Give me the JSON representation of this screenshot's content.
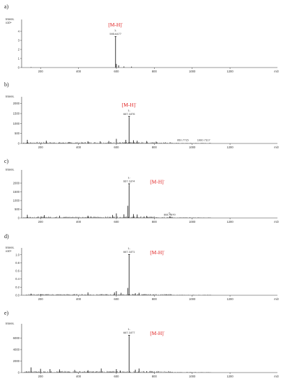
{
  "chart_data": [
    {
      "type": "bar",
      "panel": "a)",
      "ylabel": "Intens.",
      "ylabel2": "x10⁴",
      "xlabel": "m/z",
      "ylim": [
        0,
        5
      ],
      "yticks": [
        "0",
        "1",
        "2",
        "3",
        "4"
      ],
      "xlim": [
        100,
        1450
      ],
      "xticks": [
        200,
        400,
        600,
        800,
        1000,
        1200
      ],
      "ion_label": "[M-H]",
      "ion_sup": "-",
      "peak_label_1": "1-",
      "peak_label_2": "595.6477",
      "peaks": [
        [
          595.6477,
          3.3
        ],
        [
          600,
          0.4
        ],
        [
          612,
          0.25
        ],
        [
          640,
          0.12
        ],
        [
          680,
          0.1
        ],
        [
          150,
          0.05
        ]
      ],
      "other_labels": []
    },
    {
      "type": "bar",
      "panel": "b)",
      "ylabel": "Intens.",
      "ylabel2": "",
      "xlabel": "m/z",
      "ylim": [
        0,
        2200
      ],
      "yticks": [
        "0",
        "500",
        "1000",
        "1500",
        "2000"
      ],
      "xlim": [
        100,
        1450
      ],
      "xticks": [
        200,
        400,
        600,
        800,
        1000,
        1200
      ],
      "ion_label": "[M-H]",
      "ion_sup": "-",
      "peak_label_1": "1-",
      "peak_label_2": "667.1876",
      "peaks": [
        [
          667.1876,
          1300
        ],
        [
          600,
          230
        ],
        [
          650,
          180
        ],
        [
          690,
          160
        ],
        [
          710,
          140
        ],
        [
          560,
          120
        ],
        [
          515,
          110
        ],
        [
          130,
          180
        ],
        [
          230,
          140
        ],
        [
          450,
          110
        ],
        [
          760,
          120
        ],
        [
          810,
          90
        ]
      ],
      "other_labels": [
        [
          "950.7715",
          950.7715,
          60
        ],
        [
          "1060.7317",
          1060.7317,
          60
        ]
      ]
    },
    {
      "type": "bar",
      "panel": "c)",
      "ylabel": "Intens.",
      "ylabel2": "",
      "xlabel": "m/z",
      "ylim": [
        0,
        2600
      ],
      "yticks": [
        "0",
        "500",
        "1000",
        "1500",
        "2000"
      ],
      "xlim": [
        100,
        1450
      ],
      "xticks": [
        200,
        400,
        600,
        800,
        1000,
        1200
      ],
      "ion_label": "[M-H]",
      "ion_sup": "-",
      "peak_label_1": "1-",
      "peak_label_2": "667.1874",
      "peaks": [
        [
          667.1874,
          1900
        ],
        [
          660,
          700
        ],
        [
          600,
          260
        ],
        [
          640,
          210
        ],
        [
          690,
          220
        ],
        [
          710,
          200
        ],
        [
          580,
          170
        ],
        [
          130,
          180
        ],
        [
          220,
          160
        ],
        [
          300,
          130
        ],
        [
          450,
          130
        ],
        [
          760,
          120
        ],
        [
          881.487,
          90
        ]
      ],
      "other_labels": [
        [
          "2-",
          881.487,
          150
        ],
        [
          "881.4870",
          881.487,
          60
        ]
      ]
    },
    {
      "type": "bar",
      "panel": "d)",
      "ylabel": "Intens.",
      "ylabel2": "x10⁴",
      "xlabel": "m/z",
      "ylim": [
        0,
        1.1
      ],
      "yticks": [
        "0.0",
        "0.2",
        "0.4",
        "0.6",
        "0.8",
        "1.0"
      ],
      "xlim": [
        100,
        1450
      ],
      "xticks": [
        200,
        400,
        600,
        800,
        1000,
        1200
      ],
      "ion_label": "[M-H]",
      "ion_sup": "-",
      "peak_label_1": "1-",
      "peak_label_2": "667.1871",
      "peaks": [
        [
          667.1871,
          0.98
        ],
        [
          660,
          0.18
        ],
        [
          600,
          0.1
        ],
        [
          590,
          0.07
        ],
        [
          625,
          0.06
        ],
        [
          450,
          0.07
        ],
        [
          150,
          0.04
        ],
        [
          200,
          0.03
        ],
        [
          720,
          0.06
        ],
        [
          700,
          0.05
        ]
      ],
      "other_labels": []
    },
    {
      "type": "bar",
      "panel": "e)",
      "ylabel": "Intens.",
      "ylabel2": "",
      "xlabel": "m/z",
      "ylim": [
        0,
        8000
      ],
      "yticks": [
        "0",
        "2000",
        "4000",
        "6000"
      ],
      "xlim": [
        100,
        1450
      ],
      "xticks": [
        200,
        400,
        600,
        800,
        1000,
        1200
      ],
      "ion_label": "[M-H]",
      "ion_sup": "-",
      "peak_label_1": "1-",
      "peak_label_2": "667.1877",
      "peaks": [
        [
          667.1877,
          6300
        ],
        [
          720,
          700
        ],
        [
          700,
          500
        ],
        [
          600,
          600
        ],
        [
          520,
          700
        ],
        [
          150,
          900
        ],
        [
          200,
          650
        ],
        [
          250,
          600
        ],
        [
          300,
          550
        ],
        [
          380,
          450
        ],
        [
          450,
          400
        ],
        [
          620,
          350
        ],
        [
          760,
          250
        ]
      ],
      "other_labels": []
    }
  ]
}
